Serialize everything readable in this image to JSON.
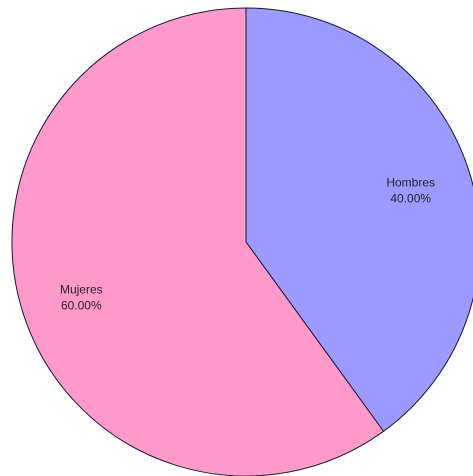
{
  "chart_data": {
    "type": "pie",
    "title": "",
    "slices": [
      {
        "label": "Hombres",
        "value": 40.0,
        "percent_label": "40.00%",
        "color": "#9b9bff"
      },
      {
        "label": "Mujeres",
        "value": 60.0,
        "percent_label": "60.00%",
        "color": "#ff99cc"
      }
    ],
    "start_angle": "12 o'clock",
    "direction": "clockwise",
    "legend": "none",
    "edge_color": "#1a1a33"
  }
}
